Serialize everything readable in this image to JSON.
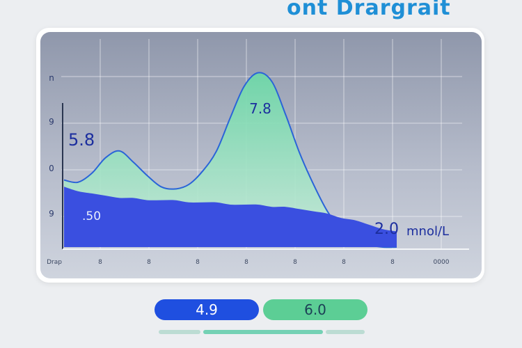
{
  "header": {
    "title": "ont Drargrait"
  },
  "chart_data": {
    "type": "area",
    "y_tick_labels": [
      "n",
      "9",
      "0",
      "9"
    ],
    "x_tick_labels": [
      "Drap",
      "8",
      "8",
      "8",
      "8",
      "8",
      "8",
      "8",
      "0000"
    ],
    "annotations": [
      {
        "label": "5.8"
      },
      {
        "label": "7.8"
      },
      {
        "label": ".50"
      },
      {
        "label": "2.0"
      },
      {
        "label": "mnol/L"
      }
    ],
    "series": [
      {
        "x": [
          0,
          1,
          2,
          3,
          4,
          5,
          6,
          7,
          8,
          9,
          10,
          11,
          12,
          13,
          14,
          15,
          16,
          17,
          18,
          19,
          20,
          21,
          22,
          23,
          24
        ],
        "values": [
          3.0,
          2.9,
          3.3,
          4.0,
          4.3,
          3.8,
          3.2,
          2.7,
          2.6,
          2.8,
          3.4,
          4.3,
          5.8,
          7.2,
          7.8,
          7.4,
          5.9,
          4.2,
          2.8,
          1.6,
          0.8,
          0.3,
          0.1,
          0.0,
          0.0
        ],
        "color": "#6ed7a8"
      },
      {
        "x": [
          0,
          1,
          2,
          3,
          4,
          5,
          6,
          7,
          8,
          9,
          10,
          11,
          12,
          13,
          14,
          15,
          16,
          17,
          18,
          19,
          20,
          21,
          22,
          23,
          24
        ],
        "values": [
          2.7,
          2.5,
          2.4,
          2.3,
          2.2,
          2.2,
          2.1,
          2.1,
          2.1,
          2.0,
          2.0,
          2.0,
          1.9,
          1.9,
          1.9,
          1.8,
          1.8,
          1.7,
          1.6,
          1.5,
          1.3,
          1.2,
          1.0,
          0.8,
          0.7
        ],
        "color": "#3a4fe0"
      }
    ],
    "colors": {
      "primary": "#3a4fe0",
      "secondary": "#6ed7a8",
      "curve": "#2a64d8"
    }
  },
  "footer": {
    "left_pill": "4.9",
    "right_pill": "6.0"
  }
}
